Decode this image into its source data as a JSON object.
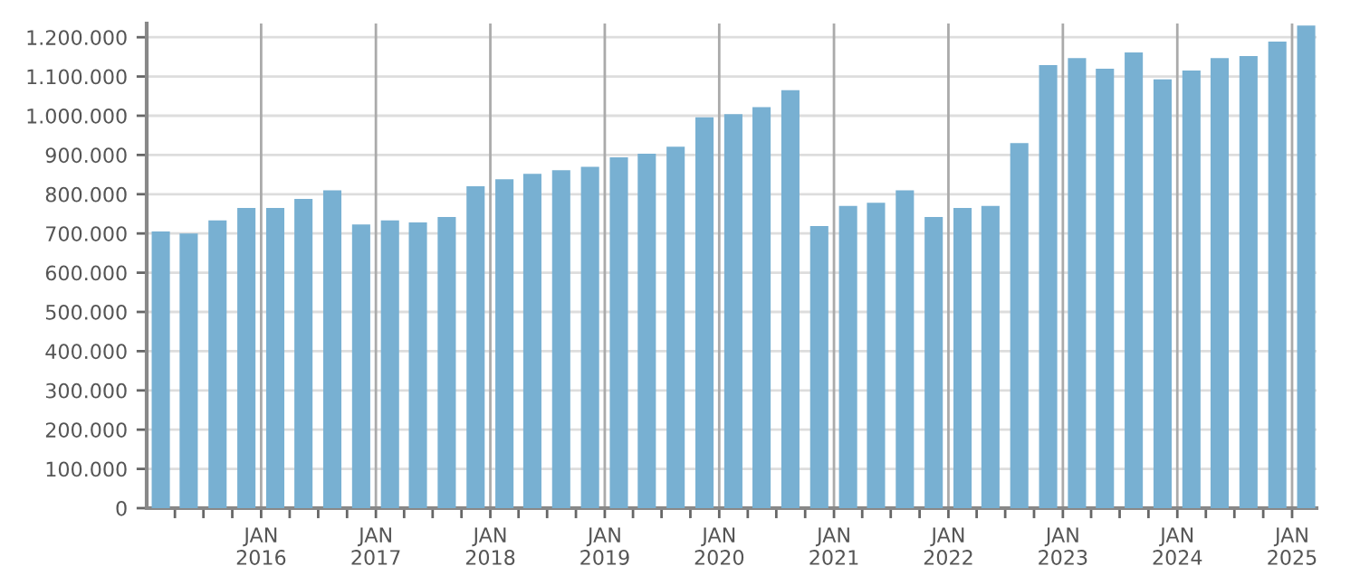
{
  "chart_data": {
    "type": "bar",
    "color": "#78b0d2",
    "x": [
      "2015-02-15",
      "2015-05-15",
      "2015-08-15",
      "2015-11-15",
      "2016-02-15",
      "2016-05-15",
      "2016-08-15",
      "2016-11-15",
      "2017-02-15",
      "2017-05-15",
      "2017-08-15",
      "2017-11-15",
      "2018-02-15",
      "2018-05-15",
      "2018-08-15",
      "2018-11-15",
      "2019-02-15",
      "2019-05-15",
      "2019-08-15",
      "2019-11-15",
      "2020-02-15",
      "2020-05-15",
      "2020-08-15",
      "2020-11-15",
      "2021-02-15",
      "2021-05-15",
      "2021-08-15",
      "2021-11-15",
      "2022-02-15",
      "2022-05-15",
      "2022-08-15",
      "2022-11-15",
      "2023-02-15",
      "2023-05-15",
      "2023-08-15",
      "2023-11-15",
      "2024-02-15",
      "2024-05-15",
      "2024-08-15",
      "2024-11-15",
      "2025-02-15"
    ],
    "values": [
      705000,
      700000,
      733000,
      765000,
      765000,
      788000,
      810000,
      723000,
      733000,
      728000,
      742000,
      820000,
      838000,
      852000,
      861000,
      870000,
      894000,
      903000,
      921000,
      996000,
      1004000,
      1022000,
      1065000,
      719000,
      770000,
      778000,
      810000,
      742000,
      765000,
      770000,
      930000,
      1129000,
      1147000,
      1120000,
      1161000,
      1093000,
      1115000,
      1147000,
      1152000,
      1189000,
      1230000
    ],
    "xlim": [
      "2015-01-01",
      "2025-03-20"
    ],
    "xticks": [
      {
        "value": "2015-04-01",
        "label": null
      },
      {
        "value": "2015-07-01",
        "label": null
      },
      {
        "value": "2015-10-01",
        "label": null
      },
      {
        "value": "2016-01-01",
        "label": "JAN\n2016"
      },
      {
        "value": "2016-04-01",
        "label": null
      },
      {
        "value": "2016-07-01",
        "label": null
      },
      {
        "value": "2016-10-01",
        "label": null
      },
      {
        "value": "2017-01-01",
        "label": "JAN\n2017"
      },
      {
        "value": "2017-04-01",
        "label": null
      },
      {
        "value": "2017-07-01",
        "label": null
      },
      {
        "value": "2017-10-01",
        "label": null
      },
      {
        "value": "2018-01-01",
        "label": "JAN\n2018"
      },
      {
        "value": "2018-04-01",
        "label": null
      },
      {
        "value": "2018-07-01",
        "label": null
      },
      {
        "value": "2018-10-01",
        "label": null
      },
      {
        "value": "2019-01-01",
        "label": "JAN\n2019"
      },
      {
        "value": "2019-04-01",
        "label": null
      },
      {
        "value": "2019-07-01",
        "label": null
      },
      {
        "value": "2019-10-01",
        "label": null
      },
      {
        "value": "2020-01-01",
        "label": "JAN\n2020"
      },
      {
        "value": "2020-04-01",
        "label": null
      },
      {
        "value": "2020-07-01",
        "label": null
      },
      {
        "value": "2020-10-01",
        "label": null
      },
      {
        "value": "2021-01-01",
        "label": "JAN\n2021"
      },
      {
        "value": "2021-04-01",
        "label": null
      },
      {
        "value": "2021-07-01",
        "label": null
      },
      {
        "value": "2021-10-01",
        "label": null
      },
      {
        "value": "2022-01-01",
        "label": "JAN\n2022"
      },
      {
        "value": "2022-04-01",
        "label": null
      },
      {
        "value": "2022-07-01",
        "label": null
      },
      {
        "value": "2022-10-01",
        "label": null
      },
      {
        "value": "2023-01-01",
        "label": "JAN\n2023"
      },
      {
        "value": "2023-04-01",
        "label": null
      },
      {
        "value": "2023-07-01",
        "label": null
      },
      {
        "value": "2023-10-01",
        "label": null
      },
      {
        "value": "2024-01-01",
        "label": "JAN\n2024"
      },
      {
        "value": "2024-04-01",
        "label": null
      },
      {
        "value": "2024-07-01",
        "label": null
      },
      {
        "value": "2024-10-01",
        "label": null
      },
      {
        "value": "2025-01-01",
        "label": "JAN\n2025"
      }
    ],
    "ylim": [
      0,
      1235000
    ],
    "yticks": [
      0,
      {
        "value": 100000,
        "label": "100.000"
      },
      {
        "value": 200000,
        "label": "200.000"
      },
      {
        "value": 300000,
        "label": "300.000"
      },
      {
        "value": 400000,
        "label": "400.000"
      },
      {
        "value": 500000,
        "label": "500.000"
      },
      {
        "value": 600000,
        "label": "600.000"
      },
      {
        "value": 700000,
        "label": "700.000"
      },
      {
        "value": 800000,
        "label": "800.000"
      },
      {
        "value": 900000,
        "label": "900.000"
      },
      {
        "value": 1000000,
        "label": "1.000.000"
      },
      {
        "value": 1100000,
        "label": "1.100.000"
      },
      {
        "value": 1200000,
        "label": "1.200.000"
      }
    ],
    "grid": true
  }
}
